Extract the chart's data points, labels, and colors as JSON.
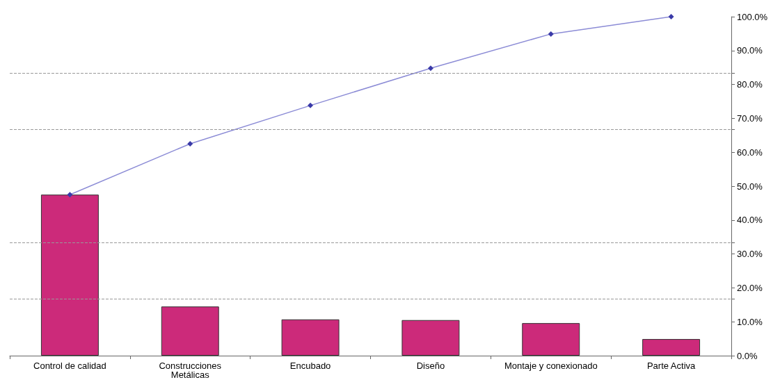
{
  "chart_data": {
    "type": "bar",
    "categories": [
      "Control de calidad",
      "Construcciones\nMetálicas",
      "Encubado",
      "Diseño",
      "Montaje y conexionado",
      "Parte Activa"
    ],
    "series": [
      {
        "color": "#cc2a7a",
        "values": [
          47.5,
          14.5,
          10.7,
          10.5,
          9.6,
          4.9
        ]
      },
      {
        "type": "line",
        "color": "#8c8cd6",
        "marker": "diamond",
        "values": [
          47.5,
          62.5,
          73.8,
          84.8,
          94.9,
          100
        ]
      }
    ],
    "ylim": [
      0,
      100
    ],
    "yticks": [
      {
        "value": 0,
        "label": "0.0%"
      },
      {
        "value": 10,
        "label": "10.0%"
      },
      {
        "value": 16.67,
        "label": null
      },
      {
        "value": 20,
        "label": "20.0%"
      },
      {
        "value": 30,
        "label": "30.0%"
      },
      {
        "value": 33.33,
        "label": null
      },
      {
        "value": 40,
        "label": "40.0%"
      },
      {
        "value": 50,
        "label": "50.0%"
      },
      {
        "value": 60,
        "label": "60.0%"
      },
      {
        "value": 66.67,
        "label": null
      },
      {
        "value": 70,
        "label": "70.0%"
      },
      {
        "value": 80,
        "label": "80.0%"
      },
      {
        "value": 83.33,
        "label": null
      },
      {
        "value": 90,
        "label": "90.0%"
      },
      {
        "value": 100,
        "label": "100.0%"
      }
    ],
    "grid": "y"
  }
}
